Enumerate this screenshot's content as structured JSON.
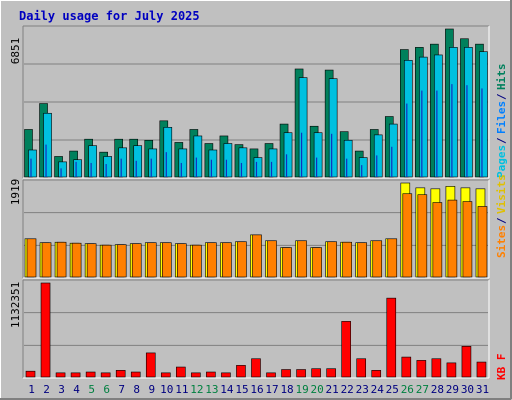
{
  "title": "Daily usage for July 2025",
  "colors": {
    "background": "#c0c0c0",
    "title": "#0000c0",
    "hits": "#00805c",
    "files": "#0080ff",
    "pages": "#00c0e0",
    "visits": "#ffff00",
    "sites": "#ff8000",
    "kbf": "#ff0000",
    "weekend_day": "#008040",
    "weekday_day": "#000080"
  },
  "chart_data": [
    {
      "type": "bar",
      "name": "top-panel",
      "categories": [
        "1",
        "2",
        "3",
        "4",
        "5",
        "6",
        "7",
        "8",
        "9",
        "10",
        "11",
        "12",
        "13",
        "14",
        "15",
        "16",
        "17",
        "18",
        "19",
        "20",
        "21",
        "22",
        "23",
        "24",
        "25",
        "26",
        "27",
        "28",
        "29",
        "30",
        "31"
      ],
      "weekend_days": [
        5,
        6,
        12,
        13,
        19,
        20,
        26,
        27
      ],
      "ymax_label": "6851",
      "legend": [
        "Pages",
        "Files",
        "Hits"
      ],
      "ylim": [
        0,
        6851
      ],
      "series": [
        {
          "name": "Hits",
          "values": [
            2200,
            3400,
            950,
            1200,
            1750,
            1150,
            1750,
            1750,
            1700,
            2600,
            1600,
            2200,
            1550,
            1900,
            1500,
            1300,
            1550,
            2450,
            5000,
            2350,
            4950,
            2100,
            1200,
            2200,
            2800,
            5900,
            6000,
            6150,
            6851,
            6400,
            6150
          ]
        },
        {
          "name": "Files",
          "values": [
            850,
            1500,
            400,
            700,
            650,
            600,
            850,
            750,
            850,
            1150,
            650,
            900,
            800,
            800,
            650,
            700,
            700,
            1050,
            2050,
            900,
            2000,
            850,
            550,
            1000,
            1400,
            3400,
            4000,
            4000,
            4300,
            4250,
            4100
          ]
        },
        {
          "name": "Pages",
          "values": [
            1250,
            2950,
            700,
            800,
            1450,
            950,
            1350,
            1450,
            1300,
            2300,
            1300,
            1900,
            1250,
            1550,
            1350,
            900,
            1300,
            2050,
            4600,
            2050,
            4550,
            1700,
            900,
            1950,
            2450,
            5400,
            5550,
            5650,
            6000,
            6000,
            5800
          ]
        }
      ]
    },
    {
      "type": "bar",
      "name": "middle-panel",
      "categories": [
        "1",
        "2",
        "3",
        "4",
        "5",
        "6",
        "7",
        "8",
        "9",
        "10",
        "11",
        "12",
        "13",
        "14",
        "15",
        "16",
        "17",
        "18",
        "19",
        "20",
        "21",
        "22",
        "23",
        "24",
        "25",
        "26",
        "27",
        "28",
        "29",
        "30",
        "31"
      ],
      "ymax_label": "1919",
      "legend": [
        "Sites",
        "Visits"
      ],
      "ylim": [
        0,
        1919
      ],
      "series": [
        {
          "name": "Visits",
          "values": [
            780,
            700,
            710,
            690,
            680,
            650,
            660,
            680,
            700,
            700,
            680,
            650,
            700,
            700,
            720,
            860,
            740,
            600,
            740,
            600,
            720,
            710,
            700,
            740,
            780,
            1919,
            1820,
            1800,
            1850,
            1820,
            1800
          ]
        },
        {
          "name": "Sites",
          "values": [
            780,
            700,
            710,
            690,
            680,
            650,
            660,
            680,
            700,
            700,
            680,
            650,
            700,
            700,
            720,
            860,
            740,
            600,
            740,
            600,
            720,
            710,
            700,
            740,
            780,
            1700,
            1680,
            1520,
            1570,
            1540,
            1440
          ]
        }
      ]
    },
    {
      "type": "bar",
      "name": "bottom-panel",
      "categories": [
        "1",
        "2",
        "3",
        "4",
        "5",
        "6",
        "7",
        "8",
        "9",
        "10",
        "11",
        "12",
        "13",
        "14",
        "15",
        "16",
        "17",
        "18",
        "19",
        "20",
        "21",
        "22",
        "23",
        "24",
        "25",
        "26",
        "27",
        "28",
        "29",
        "30",
        "31"
      ],
      "ymax_label": "1132351",
      "legend": [
        "KB F"
      ],
      "ylim": [
        0,
        1132351
      ],
      "series": [
        {
          "name": "KB F",
          "values": [
            70000,
            1132351,
            50000,
            50000,
            60000,
            50000,
            80000,
            60000,
            290000,
            50000,
            120000,
            50000,
            60000,
            50000,
            140000,
            220000,
            50000,
            90000,
            90000,
            100000,
            100000,
            670000,
            220000,
            80000,
            950000,
            240000,
            200000,
            220000,
            170000,
            370000,
            180000
          ]
        }
      ]
    }
  ]
}
